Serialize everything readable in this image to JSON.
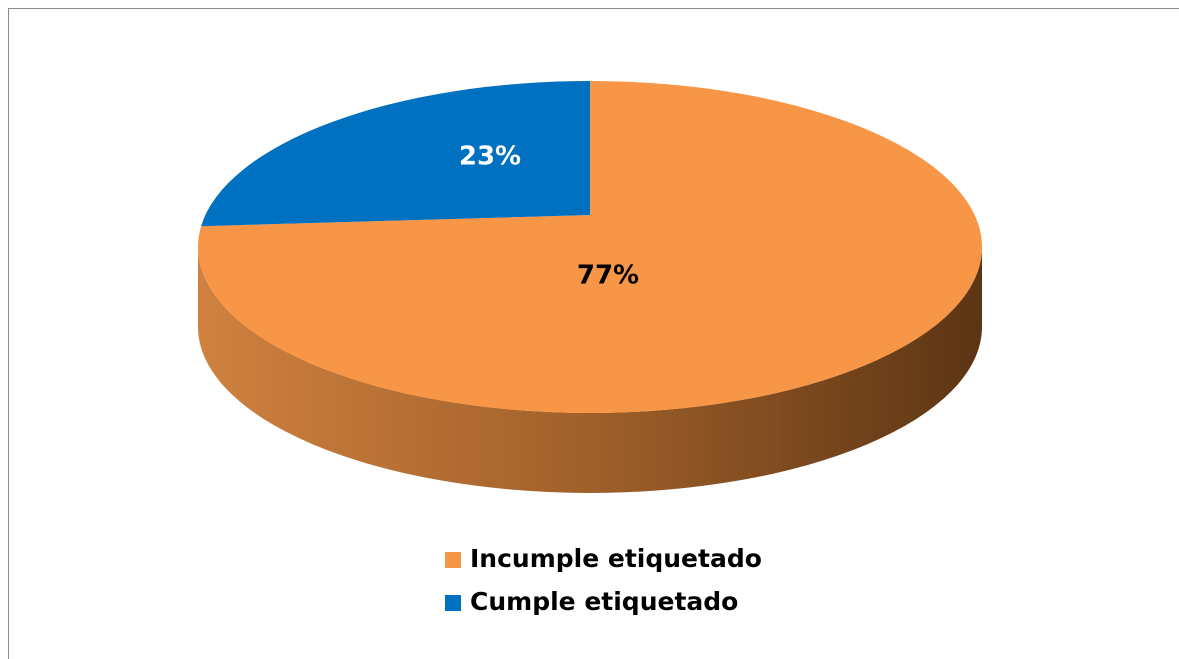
{
  "chart_data": {
    "type": "pie",
    "categories": [
      "Incumple etiquetado",
      "Cumple etiquetado"
    ],
    "values": [
      77,
      23
    ],
    "value_labels": [
      "77%",
      "23%"
    ],
    "colors": [
      "#f79646",
      "#0070c0"
    ],
    "legend": "bottom"
  }
}
